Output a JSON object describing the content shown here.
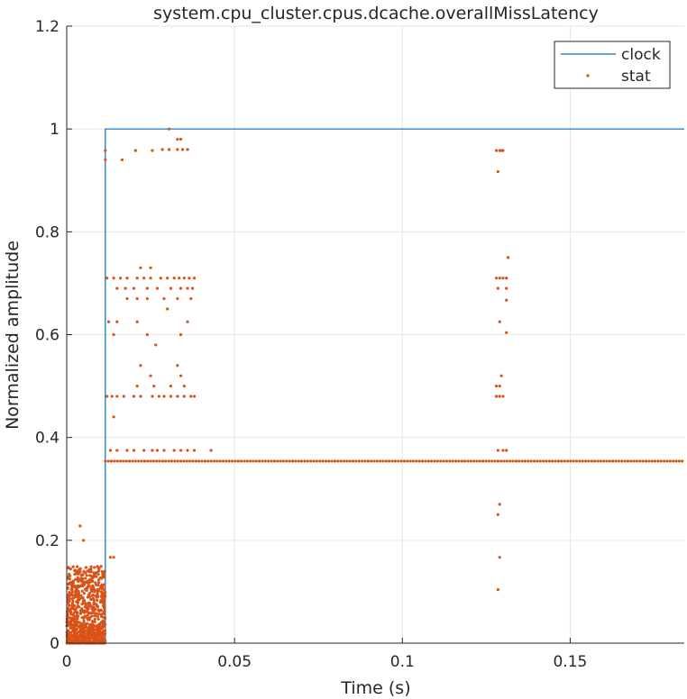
{
  "chart_data": {
    "type": "line+scatter",
    "title": "system.cpu_cluster.cpus.dcache.overallMissLatency",
    "xlabel": "Time (s)",
    "ylabel": "Normalized amplitude",
    "xlim": [
      0,
      0.184
    ],
    "ylim": [
      0,
      1.2
    ],
    "xticks": [
      0,
      0.05,
      0.1,
      0.15
    ],
    "xtick_labels": [
      "0",
      "0.05",
      "0.1",
      "0.15"
    ],
    "yticks": [
      0,
      0.2,
      0.4,
      0.6,
      0.8,
      1.0,
      1.2
    ],
    "ytick_labels": [
      "0",
      "0.2",
      "0.4",
      "0.6",
      "0.8",
      "1",
      "1.2"
    ],
    "grid": true,
    "legend_position": "top-right",
    "colors": {
      "clock": "#0072BD",
      "stat": "#D95319",
      "grid": "#e6e6e6",
      "axis": "#262626"
    },
    "series": [
      {
        "name": "clock",
        "kind": "line",
        "x": [
          0,
          0.0115,
          0.0115,
          0.184
        ],
        "y": [
          0,
          0,
          1.0,
          1.0
        ]
      },
      {
        "name": "stat",
        "kind": "scatter",
        "description_of_dense_regions": "dense cluster 0-0.15 for x 0-0.0115; horizontal band at 0.354 for x 0.0115-0.184",
        "points": [
          [
            0.0115,
            0.958
          ],
          [
            0.0115,
            0.94
          ],
          [
            0.0165,
            0.94
          ],
          [
            0.0205,
            0.958
          ],
          [
            0.0255,
            0.958
          ],
          [
            0.0305,
            1.0
          ],
          [
            0.0285,
            0.96
          ],
          [
            0.0305,
            0.96
          ],
          [
            0.033,
            0.98
          ],
          [
            0.034,
            0.98
          ],
          [
            0.033,
            0.96
          ],
          [
            0.0345,
            0.96
          ],
          [
            0.036,
            0.96
          ],
          [
            0.012,
            0.71
          ],
          [
            0.014,
            0.71
          ],
          [
            0.016,
            0.71
          ],
          [
            0.018,
            0.71
          ],
          [
            0.021,
            0.71
          ],
          [
            0.023,
            0.71
          ],
          [
            0.025,
            0.71
          ],
          [
            0.028,
            0.71
          ],
          [
            0.03,
            0.71
          ],
          [
            0.032,
            0.71
          ],
          [
            0.0335,
            0.71
          ],
          [
            0.035,
            0.71
          ],
          [
            0.0365,
            0.71
          ],
          [
            0.038,
            0.71
          ],
          [
            0.015,
            0.69
          ],
          [
            0.0175,
            0.69
          ],
          [
            0.02,
            0.69
          ],
          [
            0.024,
            0.69
          ],
          [
            0.027,
            0.69
          ],
          [
            0.031,
            0.69
          ],
          [
            0.034,
            0.69
          ],
          [
            0.036,
            0.69
          ],
          [
            0.0375,
            0.69
          ],
          [
            0.022,
            0.73
          ],
          [
            0.025,
            0.73
          ],
          [
            0.018,
            0.67
          ],
          [
            0.021,
            0.67
          ],
          [
            0.024,
            0.67
          ],
          [
            0.029,
            0.67
          ],
          [
            0.033,
            0.67
          ],
          [
            0.037,
            0.67
          ],
          [
            0.0125,
            0.625
          ],
          [
            0.015,
            0.625
          ],
          [
            0.021,
            0.625
          ],
          [
            0.03,
            0.65
          ],
          [
            0.036,
            0.625
          ],
          [
            0.014,
            0.6
          ],
          [
            0.024,
            0.6
          ],
          [
            0.0265,
            0.58
          ],
          [
            0.034,
            0.6
          ],
          [
            0.022,
            0.54
          ],
          [
            0.033,
            0.54
          ],
          [
            0.025,
            0.52
          ],
          [
            0.034,
            0.52
          ],
          [
            0.021,
            0.5
          ],
          [
            0.026,
            0.5
          ],
          [
            0.031,
            0.5
          ],
          [
            0.035,
            0.5
          ],
          [
            0.012,
            0.48
          ],
          [
            0.0135,
            0.48
          ],
          [
            0.015,
            0.48
          ],
          [
            0.017,
            0.48
          ],
          [
            0.02,
            0.48
          ],
          [
            0.022,
            0.48
          ],
          [
            0.0255,
            0.48
          ],
          [
            0.0275,
            0.48
          ],
          [
            0.029,
            0.48
          ],
          [
            0.031,
            0.48
          ],
          [
            0.033,
            0.48
          ],
          [
            0.035,
            0.48
          ],
          [
            0.037,
            0.48
          ],
          [
            0.038,
            0.48
          ],
          [
            0.014,
            0.44
          ],
          [
            0.013,
            0.375
          ],
          [
            0.015,
            0.375
          ],
          [
            0.018,
            0.375
          ],
          [
            0.02,
            0.375
          ],
          [
            0.023,
            0.375
          ],
          [
            0.0255,
            0.375
          ],
          [
            0.027,
            0.375
          ],
          [
            0.029,
            0.375
          ],
          [
            0.032,
            0.375
          ],
          [
            0.034,
            0.375
          ],
          [
            0.036,
            0.375
          ],
          [
            0.038,
            0.375
          ],
          [
            0.043,
            0.375
          ],
          [
            0.013,
            0.167
          ],
          [
            0.014,
            0.167
          ],
          [
            0.004,
            0.228
          ],
          [
            0.005,
            0.2
          ],
          [
            0.128,
            0.958
          ],
          [
            0.1285,
            0.917
          ],
          [
            0.129,
            0.958
          ],
          [
            0.1295,
            0.958
          ],
          [
            0.13,
            0.958
          ],
          [
            0.128,
            0.71
          ],
          [
            0.129,
            0.71
          ],
          [
            0.13,
            0.71
          ],
          [
            0.131,
            0.71
          ],
          [
            0.1285,
            0.69
          ],
          [
            0.131,
            0.69
          ],
          [
            0.1315,
            0.75
          ],
          [
            0.131,
            0.667
          ],
          [
            0.129,
            0.625
          ],
          [
            0.131,
            0.604
          ],
          [
            0.1295,
            0.52
          ],
          [
            0.128,
            0.5
          ],
          [
            0.129,
            0.5
          ],
          [
            0.128,
            0.48
          ],
          [
            0.129,
            0.48
          ],
          [
            0.13,
            0.48
          ],
          [
            0.1285,
            0.375
          ],
          [
            0.13,
            0.375
          ],
          [
            0.131,
            0.375
          ],
          [
            0.129,
            0.27
          ],
          [
            0.1285,
            0.25
          ],
          [
            0.129,
            0.167
          ],
          [
            0.1285,
            0.104
          ]
        ]
      }
    ]
  }
}
